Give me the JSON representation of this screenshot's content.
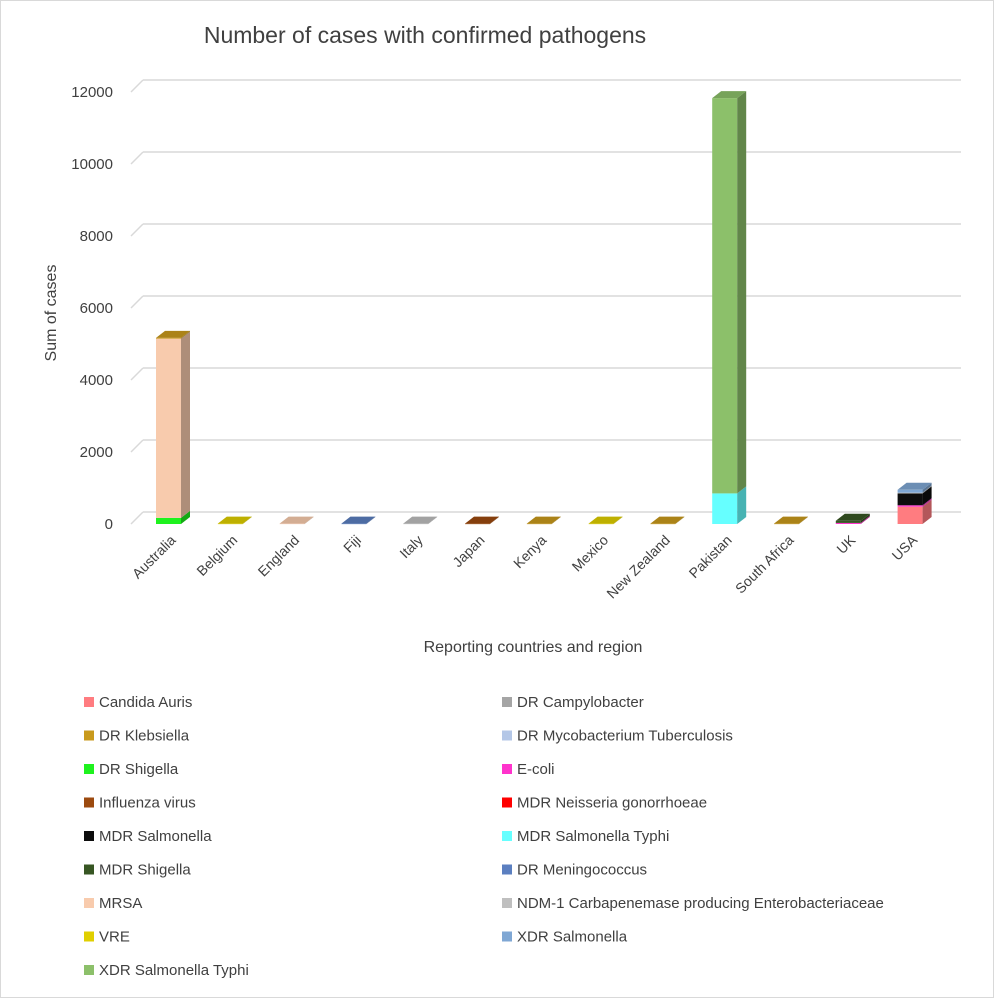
{
  "chart_data": {
    "type": "bar",
    "stacked": true,
    "three_d": true,
    "title": "Number of cases with confirmed pathogens",
    "xlabel": "Reporting countries and region",
    "ylabel": "Sum of cases",
    "ylim": [
      0,
      12000
    ],
    "yticks": [
      "0",
      "2000",
      "4000",
      "6000",
      "8000",
      "10000",
      "12000"
    ],
    "ytick_values": [
      0,
      2000,
      4000,
      6000,
      8000,
      10000,
      12000
    ],
    "grid": true,
    "legend_position": "bottom",
    "categories": [
      "Australia",
      "Belgium",
      "England",
      "Fiji",
      "Italy",
      "Japan",
      "Kenya",
      "Mexico",
      "New Zealand",
      "Pakistan",
      "South Africa",
      "UK",
      "USA"
    ],
    "series": [
      {
        "name": "Candida Auris",
        "color": "#FF7C80",
        "values": [
          0,
          0,
          0,
          0,
          0,
          0,
          0,
          0,
          0,
          0,
          0,
          0,
          480
        ]
      },
      {
        "name": "DR Shigella",
        "color": "#1EF21E",
        "values": [
          170,
          0,
          0,
          0,
          0,
          0,
          0,
          0,
          0,
          0,
          0,
          0,
          0
        ]
      },
      {
        "name": "E-coli",
        "color": "#FF33CC",
        "values": [
          0,
          0,
          0,
          0,
          0,
          0,
          0,
          0,
          0,
          0,
          0,
          30,
          40
        ]
      },
      {
        "name": "MDR Salmonella Typhi",
        "color": "#66FFFF",
        "values": [
          0,
          0,
          0,
          0,
          0,
          0,
          0,
          0,
          0,
          850,
          0,
          0,
          0
        ]
      },
      {
        "name": "MDR Salmonella",
        "color": "#0D0D0D",
        "values": [
          0,
          0,
          0,
          0,
          0,
          0,
          0,
          0,
          0,
          0,
          0,
          0,
          330
        ]
      },
      {
        "name": "MDR Shigella",
        "color": "#375623",
        "values": [
          0,
          0,
          0,
          0,
          0,
          0,
          0,
          0,
          0,
          0,
          0,
          60,
          0
        ]
      },
      {
        "name": "MRSA",
        "color": "#F8CBAD",
        "values": [
          4980,
          0,
          10,
          0,
          0,
          0,
          0,
          0,
          0,
          0,
          0,
          0,
          0
        ]
      },
      {
        "name": "NDM-1 Carbapenemase producing Enterobacteriaceae",
        "color": "#BFBFBF",
        "values": [
          0,
          0,
          0,
          0,
          10,
          0,
          0,
          0,
          0,
          0,
          0,
          0,
          20
        ]
      },
      {
        "name": "XDR Salmonella",
        "color": "#7FA7D4",
        "values": [
          0,
          0,
          0,
          0,
          0,
          0,
          0,
          0,
          0,
          0,
          0,
          0,
          80
        ]
      },
      {
        "name": "XDR Salmonella Typhi",
        "color": "#8CC06A",
        "values": [
          0,
          0,
          0,
          0,
          0,
          0,
          0,
          0,
          0,
          10980,
          0,
          0,
          0
        ]
      },
      {
        "name": "DR Klebsiella",
        "color": "#C99A1C",
        "values": [
          20,
          0,
          0,
          0,
          0,
          0,
          10,
          0,
          10,
          0,
          10,
          0,
          0
        ]
      },
      {
        "name": "DR Campylobacter",
        "color": "#A5A5A5",
        "values": [
          0,
          0,
          0,
          0,
          0,
          0,
          0,
          0,
          0,
          0,
          0,
          0,
          0
        ]
      },
      {
        "name": "DR Mycobacterium Tuberculosis",
        "color": "#B4C7E7",
        "values": [
          0,
          0,
          0,
          0,
          0,
          0,
          0,
          0,
          0,
          0,
          0,
          0,
          0
        ]
      },
      {
        "name": "Influenza virus",
        "color": "#9C4A0F",
        "values": [
          0,
          0,
          0,
          0,
          0,
          10,
          0,
          0,
          0,
          0,
          0,
          0,
          0
        ]
      },
      {
        "name": "MDR Neisseria gonorrhoeae",
        "color": "#FF0000",
        "values": [
          0,
          0,
          0,
          0,
          0,
          0,
          0,
          0,
          0,
          0,
          0,
          0,
          0
        ]
      },
      {
        "name": "DR Meningococcus",
        "color": "#5B7FC0",
        "values": [
          0,
          0,
          0,
          10,
          0,
          0,
          0,
          0,
          0,
          0,
          0,
          0,
          0
        ]
      },
      {
        "name": "VRE",
        "color": "#E0CF00",
        "values": [
          0,
          10,
          0,
          0,
          0,
          0,
          0,
          10,
          0,
          0,
          0,
          0,
          0
        ]
      }
    ],
    "legend": [
      "Candida Auris",
      "DR Campylobacter",
      "DR Klebsiella",
      "DR Mycobacterium Tuberculosis",
      "DR Shigella",
      "E-coli",
      "Influenza virus",
      "MDR Neisseria gonorrhoeae",
      "MDR Salmonella",
      "MDR Salmonella Typhi",
      "MDR Shigella",
      "DR Meningococcus",
      "MRSA",
      "NDM-1 Carbapenemase producing Enterobacteriaceae",
      "VRE",
      "XDR Salmonella",
      "XDR Salmonella Typhi"
    ]
  }
}
